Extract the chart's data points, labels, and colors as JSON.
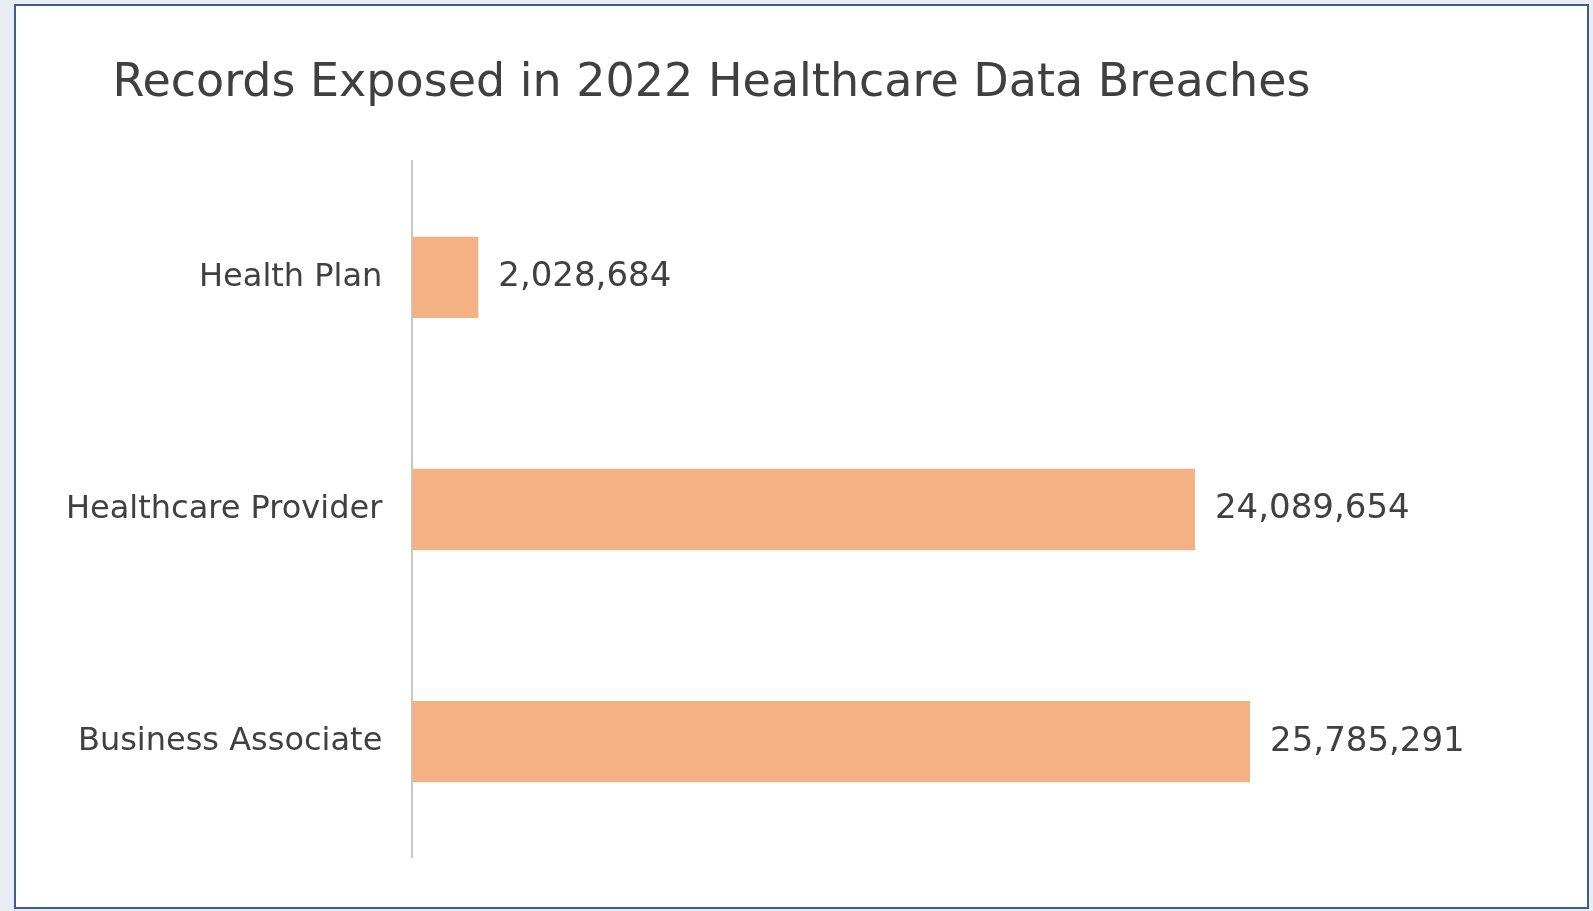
{
  "chart_data": {
    "type": "bar",
    "orientation": "horizontal",
    "title": "Records Exposed in 2022 Healthcare Data Breaches",
    "categories": [
      "Health Plan",
      "Healthcare Provider",
      "Business Associate"
    ],
    "values": [
      2028684,
      24089654,
      25785291
    ],
    "value_labels": [
      "2,028,684",
      "24,089,654",
      "25,785,291"
    ],
    "color": "#f4b183"
  }
}
